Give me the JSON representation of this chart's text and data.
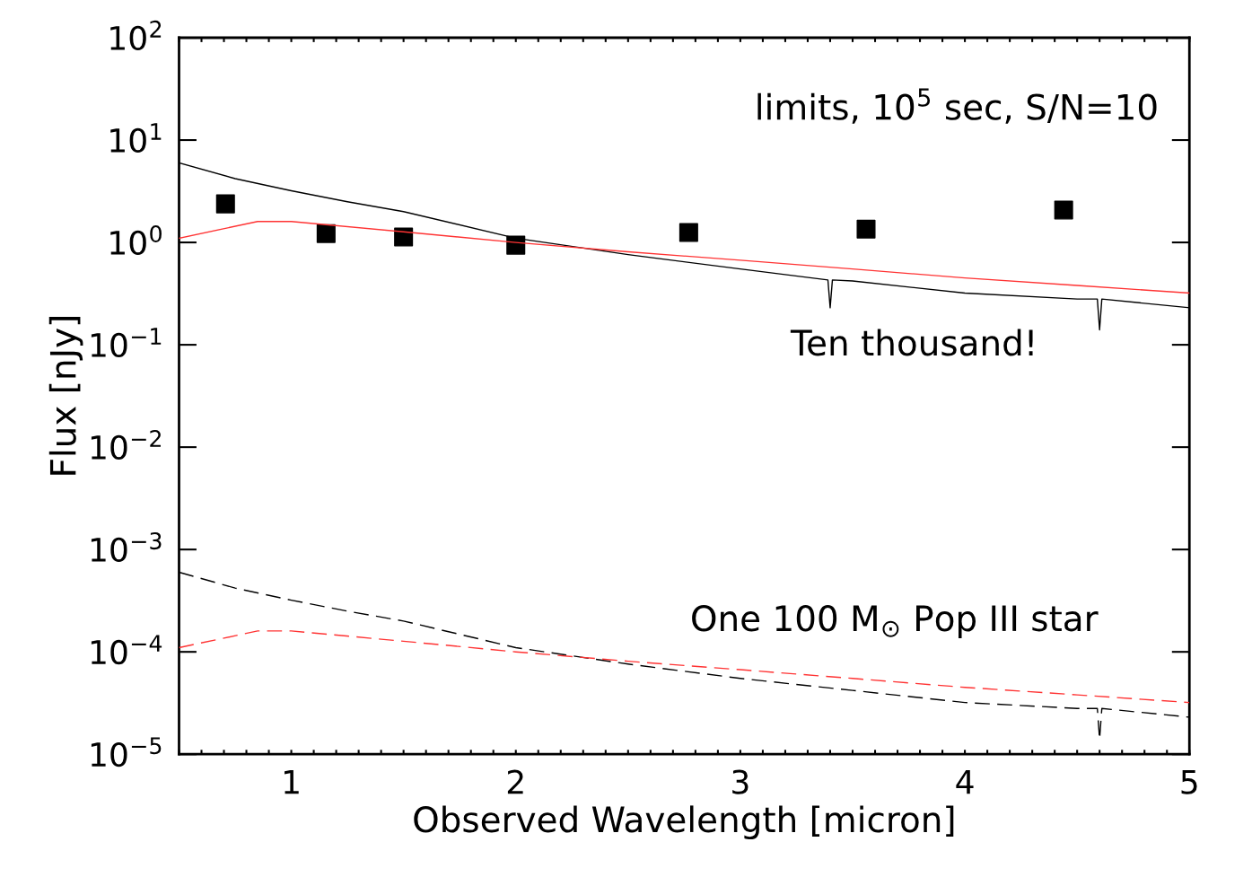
{
  "chart_data": {
    "type": "line",
    "xlabel": "Observed Wavelength [micron]",
    "ylabel": "Flux [nJy]",
    "log": "y",
    "grid": false,
    "legend": false,
    "xlim": [
      0.5,
      5
    ],
    "ylim": [
      1e-05,
      100
    ],
    "xticks": [
      {
        "value": 0.5,
        "label": null
      },
      {
        "value": 0.6,
        "label": null
      },
      {
        "value": 0.7,
        "label": null
      },
      {
        "value": 0.8,
        "label": null
      },
      {
        "value": 0.9,
        "label": null
      },
      1,
      {
        "value": 1.1,
        "label": null
      },
      {
        "value": 1.2,
        "label": null
      },
      {
        "value": 1.3,
        "label": null
      },
      {
        "value": 1.4,
        "label": null
      },
      {
        "value": 1.5,
        "label": null
      },
      {
        "value": 1.6,
        "label": null
      },
      {
        "value": 1.7,
        "label": null
      },
      {
        "value": 1.8,
        "label": null
      },
      {
        "value": 1.9,
        "label": null
      },
      2,
      {
        "value": 2.1,
        "label": null
      },
      {
        "value": 2.2,
        "label": null
      },
      {
        "value": 2.3,
        "label": null
      },
      {
        "value": 2.4,
        "label": null
      },
      {
        "value": 2.5,
        "label": null
      },
      {
        "value": 2.6,
        "label": null
      },
      {
        "value": 2.7,
        "label": null
      },
      {
        "value": 2.8,
        "label": null
      },
      {
        "value": 2.9,
        "label": null
      },
      3,
      {
        "value": 3.1,
        "label": null
      },
      {
        "value": 3.2,
        "label": null
      },
      {
        "value": 3.3,
        "label": null
      },
      {
        "value": 3.4,
        "label": null
      },
      {
        "value": 3.5,
        "label": null
      },
      {
        "value": 3.6,
        "label": null
      },
      {
        "value": 3.7,
        "label": null
      },
      {
        "value": 3.8,
        "label": null
      },
      {
        "value": 3.9,
        "label": null
      },
      4,
      {
        "value": 4.1,
        "label": null
      },
      {
        "value": 4.2,
        "label": null
      },
      {
        "value": 4.3,
        "label": null
      },
      {
        "value": 4.4,
        "label": null
      },
      {
        "value": 4.5,
        "label": null
      },
      {
        "value": 4.6,
        "label": null
      },
      {
        "value": 4.7,
        "label": null
      },
      {
        "value": 4.8,
        "label": null
      },
      {
        "value": 4.9,
        "label": null
      },
      5
    ],
    "yticks": [
      {
        "value": 1e-05,
        "label": "10$^{−5}$"
      },
      {
        "value": 0.0001,
        "label": "10$^{−4}$"
      },
      {
        "value": 0.001,
        "label": "10$^{−3}$"
      },
      {
        "value": 0.01,
        "label": "10$^{−2}$"
      },
      {
        "value": 0.1,
        "label": "10$^{−1}$"
      },
      {
        "value": 1,
        "label": "10$^{0}$"
      },
      {
        "value": 10,
        "label": "10$^{1}$"
      },
      {
        "value": 100,
        "label": "10$^{2}$"
      }
    ],
    "series": [
      {
        "line_style": "solid",
        "color": "#000000",
        "x": [
          0.5,
          0.75,
          1,
          1.25,
          1.5,
          2,
          2.5,
          3,
          3.39,
          3.4,
          3.41,
          3.5,
          4,
          4.5,
          4.59,
          4.6,
          4.61,
          5
        ],
        "values": [
          6.0,
          4.2,
          3.2,
          2.5,
          2.0,
          1.1,
          0.76,
          0.55,
          0.43,
          0.23,
          0.43,
          0.42,
          0.32,
          0.28,
          0.28,
          0.14,
          0.28,
          0.23
        ]
      },
      {
        "line_style": "solid",
        "color": "#ff3333",
        "x": [
          0.5,
          0.85,
          1,
          1.5,
          2,
          2.5,
          3,
          3.5,
          4,
          4.5,
          5
        ],
        "values": [
          1.1,
          1.6,
          1.6,
          1.27,
          1.0,
          0.81,
          0.67,
          0.55,
          0.45,
          0.38,
          0.32
        ]
      },
      {
        "line_style": "dashed",
        "color": "#000000",
        "x": [
          0.5,
          0.75,
          1,
          1.25,
          1.5,
          2,
          2.5,
          3,
          3.5,
          4,
          4.5,
          4.59,
          4.6,
          4.61,
          5
        ],
        "values": [
          0.0006,
          0.00042,
          0.00032,
          0.00025,
          0.0002,
          0.00011,
          7.6e-05,
          5.5e-05,
          4.2e-05,
          3.2e-05,
          2.8e-05,
          2.8e-05,
          1.4e-05,
          2.8e-05,
          2.3e-05
        ]
      },
      {
        "line_style": "dashed",
        "color": "#ff3333",
        "x": [
          0.5,
          0.85,
          1,
          1.5,
          2,
          2.5,
          3,
          3.5,
          4,
          4.5,
          5
        ],
        "values": [
          0.00011,
          0.00016,
          0.00016,
          0.000127,
          0.0001,
          8.1e-05,
          6.7e-05,
          5.5e-05,
          4.5e-05,
          3.8e-05,
          3.2e-05
        ]
      },
      {
        "type": "scatter",
        "marker": "square",
        "color": "#000000",
        "x": [
          0.707,
          1.155,
          1.5,
          2.0,
          2.77,
          3.56,
          4.44
        ],
        "values": [
          2.38,
          1.22,
          1.13,
          0.94,
          1.25,
          1.35,
          2.07
        ]
      }
    ],
    "annotations": [
      "limits, 10$^{5}$ sec, S/N=10",
      "Ten thousand!",
      "One 100 M$_{⊙}$ Pop III star"
    ]
  }
}
